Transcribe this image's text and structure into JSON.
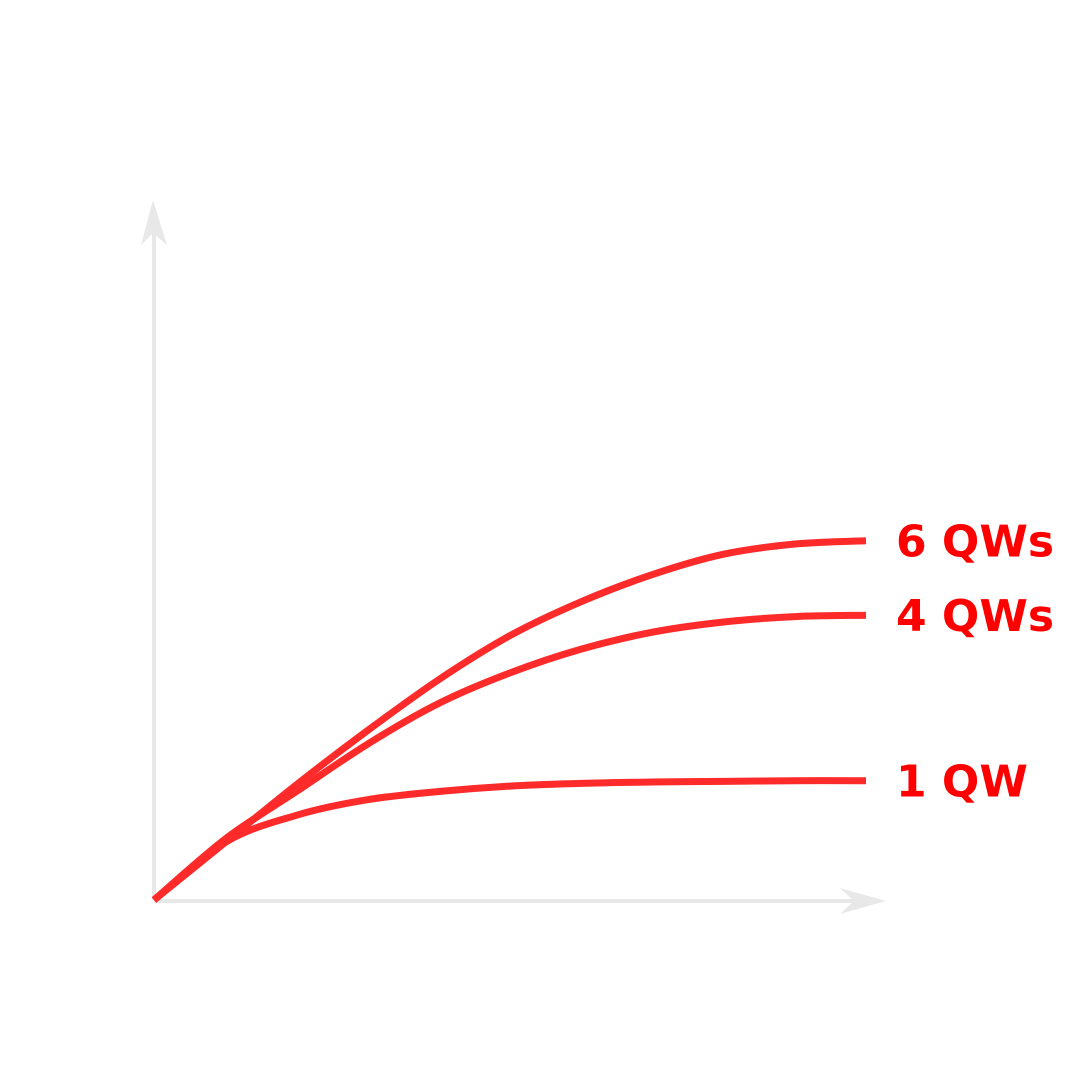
{
  "chart_data": {
    "type": "line",
    "title": "",
    "xlabel": "",
    "ylabel": "",
    "grid": false,
    "legend": "none",
    "colors": {
      "curve": "#ff2a2a",
      "label": "#ff0000",
      "axis": "#e8e8e8"
    },
    "xlim": [
      0,
      1
    ],
    "ylim": [
      0,
      1
    ],
    "series": [
      {
        "name": "6 QWs",
        "x": [
          0,
          0.1,
          0.2,
          0.3,
          0.4,
          0.5,
          0.6,
          0.7,
          0.8,
          0.9,
          1.0
        ],
        "y": [
          0,
          0.085,
          0.17,
          0.25,
          0.325,
          0.39,
          0.44,
          0.48,
          0.51,
          0.525,
          0.53
        ]
      },
      {
        "name": "4 QWs",
        "x": [
          0,
          0.1,
          0.2,
          0.3,
          0.4,
          0.5,
          0.6,
          0.7,
          0.8,
          0.9,
          1.0
        ],
        "y": [
          0,
          0.09,
          0.16,
          0.23,
          0.29,
          0.335,
          0.37,
          0.395,
          0.41,
          0.418,
          0.42
        ]
      },
      {
        "name": "1 QW",
        "x": [
          0,
          0.1,
          0.2,
          0.3,
          0.4,
          0.5,
          0.6,
          0.7,
          0.8,
          0.9,
          1.0
        ],
        "y": [
          0,
          0.085,
          0.125,
          0.148,
          0.16,
          0.168,
          0.172,
          0.174,
          0.175,
          0.176,
          0.176
        ]
      }
    ]
  }
}
